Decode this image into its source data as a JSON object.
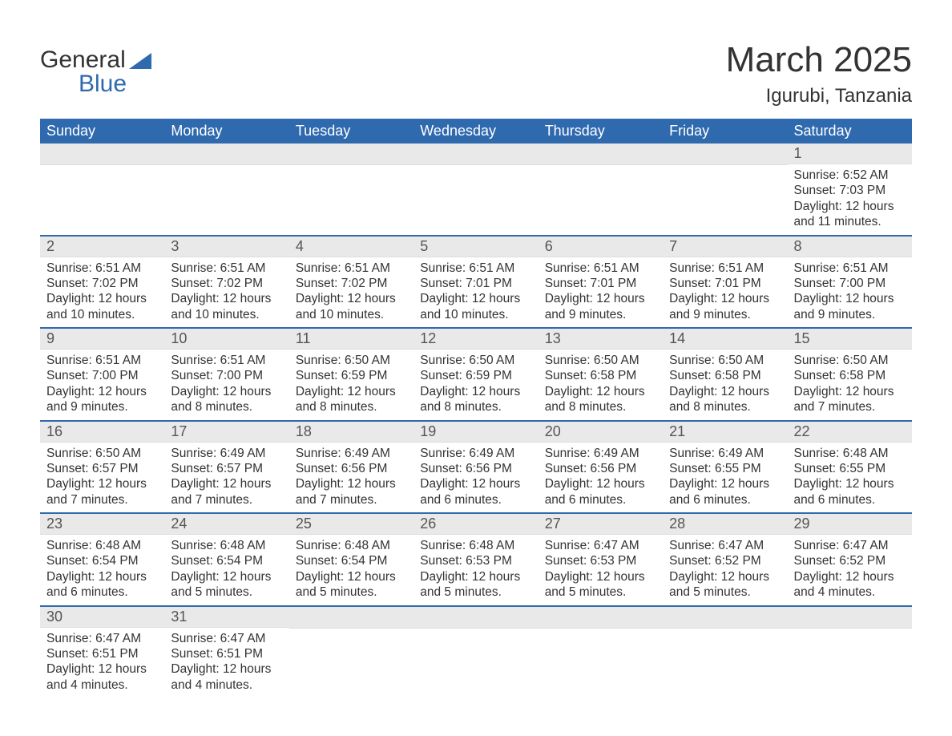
{
  "logo": {
    "text_top": "General",
    "text_bottom": "Blue",
    "triangle_color": "#2f6aae"
  },
  "title": "March 2025",
  "location": "Igurubi, Tanzania",
  "colors": {
    "header_bg": "#2f6aae",
    "header_text": "#ffffff",
    "daynum_bg": "#e9e9e9",
    "row_separator": "#2f6aae",
    "body_text": "#333333",
    "page_bg": "#ffffff"
  },
  "table": {
    "columns": [
      "Sunday",
      "Monday",
      "Tuesday",
      "Wednesday",
      "Thursday",
      "Friday",
      "Saturday"
    ],
    "font": {
      "header_size": 18,
      "daynum_size": 18,
      "body_size": 15.5
    }
  },
  "weeks": [
    [
      {
        "day": "",
        "sunrise": "",
        "sunset": "",
        "daylight": ""
      },
      {
        "day": "",
        "sunrise": "",
        "sunset": "",
        "daylight": ""
      },
      {
        "day": "",
        "sunrise": "",
        "sunset": "",
        "daylight": ""
      },
      {
        "day": "",
        "sunrise": "",
        "sunset": "",
        "daylight": ""
      },
      {
        "day": "",
        "sunrise": "",
        "sunset": "",
        "daylight": ""
      },
      {
        "day": "",
        "sunrise": "",
        "sunset": "",
        "daylight": ""
      },
      {
        "day": "1",
        "sunrise": "Sunrise: 6:52 AM",
        "sunset": "Sunset: 7:03 PM",
        "daylight": "Daylight: 12 hours and 11 minutes."
      }
    ],
    [
      {
        "day": "2",
        "sunrise": "Sunrise: 6:51 AM",
        "sunset": "Sunset: 7:02 PM",
        "daylight": "Daylight: 12 hours and 10 minutes."
      },
      {
        "day": "3",
        "sunrise": "Sunrise: 6:51 AM",
        "sunset": "Sunset: 7:02 PM",
        "daylight": "Daylight: 12 hours and 10 minutes."
      },
      {
        "day": "4",
        "sunrise": "Sunrise: 6:51 AM",
        "sunset": "Sunset: 7:02 PM",
        "daylight": "Daylight: 12 hours and 10 minutes."
      },
      {
        "day": "5",
        "sunrise": "Sunrise: 6:51 AM",
        "sunset": "Sunset: 7:01 PM",
        "daylight": "Daylight: 12 hours and 10 minutes."
      },
      {
        "day": "6",
        "sunrise": "Sunrise: 6:51 AM",
        "sunset": "Sunset: 7:01 PM",
        "daylight": "Daylight: 12 hours and 9 minutes."
      },
      {
        "day": "7",
        "sunrise": "Sunrise: 6:51 AM",
        "sunset": "Sunset: 7:01 PM",
        "daylight": "Daylight: 12 hours and 9 minutes."
      },
      {
        "day": "8",
        "sunrise": "Sunrise: 6:51 AM",
        "sunset": "Sunset: 7:00 PM",
        "daylight": "Daylight: 12 hours and 9 minutes."
      }
    ],
    [
      {
        "day": "9",
        "sunrise": "Sunrise: 6:51 AM",
        "sunset": "Sunset: 7:00 PM",
        "daylight": "Daylight: 12 hours and 9 minutes."
      },
      {
        "day": "10",
        "sunrise": "Sunrise: 6:51 AM",
        "sunset": "Sunset: 7:00 PM",
        "daylight": "Daylight: 12 hours and 8 minutes."
      },
      {
        "day": "11",
        "sunrise": "Sunrise: 6:50 AM",
        "sunset": "Sunset: 6:59 PM",
        "daylight": "Daylight: 12 hours and 8 minutes."
      },
      {
        "day": "12",
        "sunrise": "Sunrise: 6:50 AM",
        "sunset": "Sunset: 6:59 PM",
        "daylight": "Daylight: 12 hours and 8 minutes."
      },
      {
        "day": "13",
        "sunrise": "Sunrise: 6:50 AM",
        "sunset": "Sunset: 6:58 PM",
        "daylight": "Daylight: 12 hours and 8 minutes."
      },
      {
        "day": "14",
        "sunrise": "Sunrise: 6:50 AM",
        "sunset": "Sunset: 6:58 PM",
        "daylight": "Daylight: 12 hours and 8 minutes."
      },
      {
        "day": "15",
        "sunrise": "Sunrise: 6:50 AM",
        "sunset": "Sunset: 6:58 PM",
        "daylight": "Daylight: 12 hours and 7 minutes."
      }
    ],
    [
      {
        "day": "16",
        "sunrise": "Sunrise: 6:50 AM",
        "sunset": "Sunset: 6:57 PM",
        "daylight": "Daylight: 12 hours and 7 minutes."
      },
      {
        "day": "17",
        "sunrise": "Sunrise: 6:49 AM",
        "sunset": "Sunset: 6:57 PM",
        "daylight": "Daylight: 12 hours and 7 minutes."
      },
      {
        "day": "18",
        "sunrise": "Sunrise: 6:49 AM",
        "sunset": "Sunset: 6:56 PM",
        "daylight": "Daylight: 12 hours and 7 minutes."
      },
      {
        "day": "19",
        "sunrise": "Sunrise: 6:49 AM",
        "sunset": "Sunset: 6:56 PM",
        "daylight": "Daylight: 12 hours and 6 minutes."
      },
      {
        "day": "20",
        "sunrise": "Sunrise: 6:49 AM",
        "sunset": "Sunset: 6:56 PM",
        "daylight": "Daylight: 12 hours and 6 minutes."
      },
      {
        "day": "21",
        "sunrise": "Sunrise: 6:49 AM",
        "sunset": "Sunset: 6:55 PM",
        "daylight": "Daylight: 12 hours and 6 minutes."
      },
      {
        "day": "22",
        "sunrise": "Sunrise: 6:48 AM",
        "sunset": "Sunset: 6:55 PM",
        "daylight": "Daylight: 12 hours and 6 minutes."
      }
    ],
    [
      {
        "day": "23",
        "sunrise": "Sunrise: 6:48 AM",
        "sunset": "Sunset: 6:54 PM",
        "daylight": "Daylight: 12 hours and 6 minutes."
      },
      {
        "day": "24",
        "sunrise": "Sunrise: 6:48 AM",
        "sunset": "Sunset: 6:54 PM",
        "daylight": "Daylight: 12 hours and 5 minutes."
      },
      {
        "day": "25",
        "sunrise": "Sunrise: 6:48 AM",
        "sunset": "Sunset: 6:54 PM",
        "daylight": "Daylight: 12 hours and 5 minutes."
      },
      {
        "day": "26",
        "sunrise": "Sunrise: 6:48 AM",
        "sunset": "Sunset: 6:53 PM",
        "daylight": "Daylight: 12 hours and 5 minutes."
      },
      {
        "day": "27",
        "sunrise": "Sunrise: 6:47 AM",
        "sunset": "Sunset: 6:53 PM",
        "daylight": "Daylight: 12 hours and 5 minutes."
      },
      {
        "day": "28",
        "sunrise": "Sunrise: 6:47 AM",
        "sunset": "Sunset: 6:52 PM",
        "daylight": "Daylight: 12 hours and 5 minutes."
      },
      {
        "day": "29",
        "sunrise": "Sunrise: 6:47 AM",
        "sunset": "Sunset: 6:52 PM",
        "daylight": "Daylight: 12 hours and 4 minutes."
      }
    ],
    [
      {
        "day": "30",
        "sunrise": "Sunrise: 6:47 AM",
        "sunset": "Sunset: 6:51 PM",
        "daylight": "Daylight: 12 hours and 4 minutes."
      },
      {
        "day": "31",
        "sunrise": "Sunrise: 6:47 AM",
        "sunset": "Sunset: 6:51 PM",
        "daylight": "Daylight: 12 hours and 4 minutes."
      },
      {
        "day": "",
        "sunrise": "",
        "sunset": "",
        "daylight": ""
      },
      {
        "day": "",
        "sunrise": "",
        "sunset": "",
        "daylight": ""
      },
      {
        "day": "",
        "sunrise": "",
        "sunset": "",
        "daylight": ""
      },
      {
        "day": "",
        "sunrise": "",
        "sunset": "",
        "daylight": ""
      },
      {
        "day": "",
        "sunrise": "",
        "sunset": "",
        "daylight": ""
      }
    ]
  ]
}
